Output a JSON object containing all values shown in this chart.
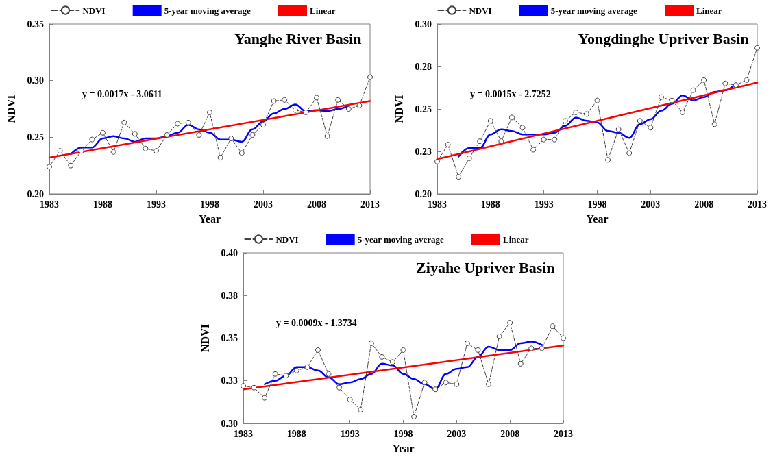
{
  "chart_data": [
    {
      "type": "line",
      "title": "Yanghe River Basin",
      "xlabel": "Year",
      "ylabel": "NDVI",
      "annotations": [
        "y = 0.0017x - 3.0611"
      ],
      "xlim": [
        1983,
        2013
      ],
      "xticks": [
        1983,
        1988,
        1993,
        1998,
        2003,
        2008,
        2013
      ],
      "ylim": [
        0.2,
        0.35
      ],
      "yticks": [
        {
          "value": 0.2,
          "label": "0.20"
        },
        {
          "value": 0.25,
          "label": "0.25"
        },
        {
          "value": 0.3,
          "label": "0.30"
        },
        {
          "value": 0.35,
          "label": "0.35"
        }
      ],
      "grid": false,
      "legend": "top",
      "series": [
        {
          "name": "NDVI",
          "color": "#404040",
          "marker": "circle",
          "line_style": "dashed",
          "x": [
            1983,
            1984,
            1985,
            1986,
            1987,
            1988,
            1989,
            1990,
            1991,
            1992,
            1993,
            1994,
            1995,
            1996,
            1997,
            1998,
            1999,
            2000,
            2001,
            2002,
            2003,
            2004,
            2005,
            2006,
            2007,
            2008,
            2009,
            2010,
            2011,
            2012,
            2013
          ],
          "values": [
            0.224,
            0.238,
            0.225,
            0.238,
            0.248,
            0.254,
            0.237,
            0.263,
            0.253,
            0.24,
            0.238,
            0.252,
            0.262,
            0.263,
            0.252,
            0.272,
            0.232,
            0.249,
            0.236,
            0.252,
            0.261,
            0.282,
            0.283,
            0.274,
            0.272,
            0.285,
            0.251,
            0.283,
            0.275,
            0.278,
            0.303
          ]
        },
        {
          "name": "5-year moving average",
          "color": "#0000ff",
          "marker": "none",
          "line_style": "solid",
          "x": [
            1985,
            1986,
            1987,
            1988,
            1989,
            1990,
            1991,
            1992,
            1993,
            1994,
            1995,
            1996,
            1997,
            1998,
            1999,
            2000,
            2001,
            2002,
            2003,
            2004,
            2005,
            2006,
            2007,
            2008,
            2009,
            2010,
            2011
          ],
          "values": [
            0.235,
            0.241,
            0.241,
            0.249,
            0.251,
            0.249,
            0.246,
            0.249,
            0.249,
            0.251,
            0.254,
            0.261,
            0.257,
            0.254,
            0.248,
            0.248,
            0.246,
            0.257,
            0.264,
            0.271,
            0.275,
            0.279,
            0.273,
            0.274,
            0.273,
            0.275,
            0.278
          ]
        },
        {
          "name": "Linear",
          "color": "#ff0000",
          "marker": "none",
          "line_style": "solid",
          "x": [
            1983,
            2013
          ],
          "values": [
            0.232,
            0.282
          ]
        }
      ]
    },
    {
      "type": "line",
      "title": "Yongdinghe Upriver Basin",
      "xlabel": "Year",
      "ylabel": "NDVI",
      "annotations": [
        "y = 0.0015x - 2.7252"
      ],
      "xlim": [
        1983,
        2013
      ],
      "xticks": [
        1983,
        1988,
        1993,
        1998,
        2003,
        2008,
        2013
      ],
      "ylim": [
        0.2,
        0.3
      ],
      "yticks": [
        {
          "value": 0.2,
          "label": "0.20"
        },
        {
          "value": 0.225,
          "label": "0.23"
        },
        {
          "value": 0.25,
          "label": "0.25"
        },
        {
          "value": 0.275,
          "label": "0.28"
        },
        {
          "value": 0.3,
          "label": "0.30"
        }
      ],
      "grid": false,
      "legend": "top",
      "series": [
        {
          "name": "NDVI",
          "color": "#404040",
          "marker": "circle",
          "line_style": "dashed",
          "x": [
            1983,
            1984,
            1985,
            1986,
            1987,
            1988,
            1989,
            1990,
            1991,
            1992,
            1993,
            1994,
            1995,
            1996,
            1997,
            1998,
            1999,
            2000,
            2001,
            2002,
            2003,
            2004,
            2005,
            2006,
            2007,
            2008,
            2009,
            2010,
            2011,
            2012,
            2013
          ],
          "values": [
            0.219,
            0.229,
            0.21,
            0.221,
            0.231,
            0.243,
            0.231,
            0.245,
            0.239,
            0.226,
            0.232,
            0.232,
            0.243,
            0.248,
            0.247,
            0.255,
            0.22,
            0.238,
            0.224,
            0.243,
            0.239,
            0.257,
            0.255,
            0.248,
            0.261,
            0.267,
            0.241,
            0.265,
            0.264,
            0.267,
            0.286
          ]
        },
        {
          "name": "5-year moving average",
          "color": "#0000ff",
          "marker": "none",
          "line_style": "solid",
          "x": [
            1985,
            1986,
            1987,
            1988,
            1989,
            1990,
            1991,
            1992,
            1993,
            1994,
            1995,
            1996,
            1997,
            1998,
            1999,
            2000,
            2001,
            2002,
            2003,
            2004,
            2005,
            2006,
            2007,
            2008,
            2009,
            2010,
            2011
          ],
          "values": [
            0.222,
            0.227,
            0.227,
            0.235,
            0.238,
            0.237,
            0.235,
            0.235,
            0.235,
            0.236,
            0.24,
            0.245,
            0.243,
            0.242,
            0.237,
            0.236,
            0.233,
            0.241,
            0.244,
            0.249,
            0.253,
            0.258,
            0.255,
            0.257,
            0.26,
            0.261,
            0.265
          ]
        },
        {
          "name": "Linear",
          "color": "#ff0000",
          "marker": "none",
          "line_style": "solid",
          "x": [
            1983,
            2013
          ],
          "values": [
            0.2205,
            0.2655
          ]
        }
      ]
    },
    {
      "type": "line",
      "title": "Ziyahe Upriver Basin",
      "xlabel": "Year",
      "ylabel": "NDVI",
      "annotations": [
        "y = 0.0009x - 1.3734"
      ],
      "xlim": [
        1983,
        2013
      ],
      "xticks": [
        1983,
        1988,
        1993,
        1998,
        2003,
        2008,
        2013
      ],
      "ylim": [
        0.3,
        0.4
      ],
      "yticks": [
        {
          "value": 0.3,
          "label": "0.30"
        },
        {
          "value": 0.325,
          "label": "0.33"
        },
        {
          "value": 0.35,
          "label": "0.35"
        },
        {
          "value": 0.375,
          "label": "0.38"
        },
        {
          "value": 0.4,
          "label": "0.40"
        }
      ],
      "grid": false,
      "legend": "top",
      "series": [
        {
          "name": "NDVI",
          "color": "#404040",
          "marker": "circle",
          "line_style": "dashed",
          "x": [
            1983,
            1984,
            1985,
            1986,
            1987,
            1988,
            1989,
            1990,
            1991,
            1992,
            1993,
            1994,
            1995,
            1996,
            1997,
            1998,
            1999,
            2000,
            2001,
            2002,
            2003,
            2004,
            2005,
            2006,
            2007,
            2008,
            2009,
            2010,
            2011,
            2012,
            2013
          ],
          "values": [
            0.322,
            0.321,
            0.315,
            0.329,
            0.328,
            0.331,
            0.333,
            0.343,
            0.329,
            0.321,
            0.314,
            0.308,
            0.347,
            0.339,
            0.336,
            0.343,
            0.304,
            0.324,
            0.32,
            0.324,
            0.323,
            0.347,
            0.343,
            0.323,
            0.351,
            0.359,
            0.335,
            0.344,
            0.344,
            0.357,
            0.35
          ]
        },
        {
          "name": "5-year moving average",
          "color": "#0000ff",
          "marker": "none",
          "line_style": "solid",
          "x": [
            1985,
            1986,
            1987,
            1988,
            1989,
            1990,
            1991,
            1992,
            1993,
            1994,
            1995,
            1996,
            1997,
            1998,
            1999,
            2000,
            2001,
            2002,
            2003,
            2004,
            2005,
            2006,
            2007,
            2008,
            2009,
            2010,
            2011
          ],
          "values": [
            0.323,
            0.325,
            0.328,
            0.333,
            0.333,
            0.331,
            0.327,
            0.323,
            0.324,
            0.326,
            0.329,
            0.335,
            0.334,
            0.329,
            0.326,
            0.323,
            0.32,
            0.329,
            0.332,
            0.333,
            0.339,
            0.345,
            0.343,
            0.343,
            0.347,
            0.348,
            0.346
          ]
        },
        {
          "name": "Linear",
          "color": "#ff0000",
          "marker": "none",
          "line_style": "solid",
          "x": [
            1983,
            2013
          ],
          "values": [
            0.32,
            0.3457
          ]
        }
      ]
    }
  ]
}
